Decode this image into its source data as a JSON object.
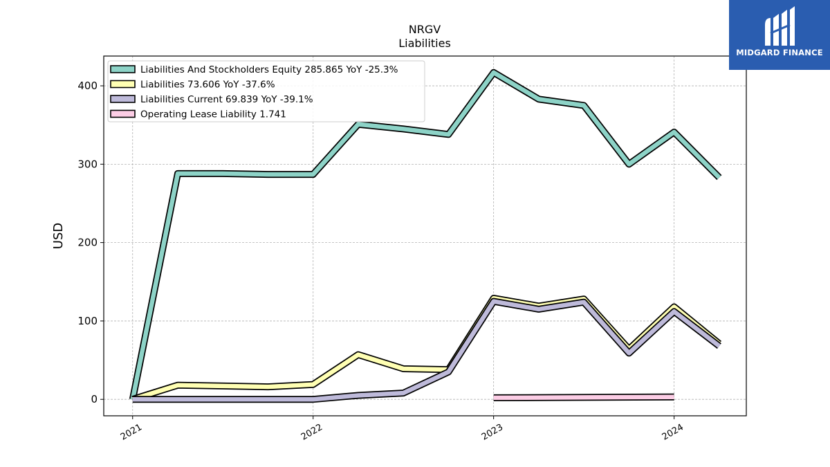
{
  "chart_data": {
    "type": "line",
    "title": "NRGV",
    "subtitle": "Liabilities",
    "xlabel": "",
    "ylabel": "USD",
    "x_ticks": [
      "2021",
      "2022",
      "2023",
      "2024"
    ],
    "y_ticks": [
      0,
      100,
      200,
      300,
      400
    ],
    "xlim": [
      2020.84,
      2024.4
    ],
    "ylim": [
      -21,
      438
    ],
    "grid": true,
    "legend_position": "top-left",
    "series": [
      {
        "name": "Liabilities And Stockholders Equity",
        "legend_label": "Liabilities And Stockholders Equity  285.865 YoY -25.3%",
        "color": "#8dd3c7",
        "points": [
          [
            2021.0,
            0
          ],
          [
            2021.25,
            288
          ],
          [
            2021.5,
            288
          ],
          [
            2021.75,
            287
          ],
          [
            2022.0,
            287
          ],
          [
            2022.25,
            351
          ],
          [
            2022.5,
            345
          ],
          [
            2022.75,
            338
          ],
          [
            2023.0,
            417
          ],
          [
            2023.25,
            383
          ],
          [
            2023.5,
            375
          ],
          [
            2023.75,
            300
          ],
          [
            2024.0,
            341
          ],
          [
            2024.25,
            283
          ]
        ]
      },
      {
        "name": "Liabilities",
        "legend_label": "Liabilities  73.606 YoY -37.6%",
        "color": "#ffffb3",
        "points": [
          [
            2021.0,
            0
          ],
          [
            2021.25,
            18
          ],
          [
            2021.5,
            17
          ],
          [
            2021.75,
            16
          ],
          [
            2022.0,
            19
          ],
          [
            2022.25,
            57
          ],
          [
            2022.5,
            39
          ],
          [
            2022.75,
            38
          ],
          [
            2023.0,
            129
          ],
          [
            2023.25,
            119
          ],
          [
            2023.5,
            128
          ],
          [
            2023.75,
            64
          ],
          [
            2024.0,
            118
          ],
          [
            2024.25,
            71
          ]
        ]
      },
      {
        "name": "Liabilities Current",
        "legend_label": "Liabilities Current  69.839 YoY -39.1%",
        "color": "#bebada",
        "points": [
          [
            2021.0,
            0
          ],
          [
            2021.25,
            0
          ],
          [
            2021.5,
            0
          ],
          [
            2021.75,
            0
          ],
          [
            2022.0,
            0
          ],
          [
            2022.25,
            5
          ],
          [
            2022.5,
            8
          ],
          [
            2022.75,
            35
          ],
          [
            2023.0,
            125
          ],
          [
            2023.25,
            115
          ],
          [
            2023.5,
            124
          ],
          [
            2023.75,
            59
          ],
          [
            2024.0,
            112
          ],
          [
            2024.25,
            68
          ]
        ]
      },
      {
        "name": "Operating Lease Liability",
        "legend_label": "Operating Lease Liability  1.741",
        "color": "#fccde5",
        "points": [
          [
            2023.0,
            2
          ],
          [
            2024.0,
            3
          ]
        ]
      }
    ]
  },
  "watermark": {
    "text": "MIDGARD FINANCE",
    "background_color": "#2a5db0"
  }
}
